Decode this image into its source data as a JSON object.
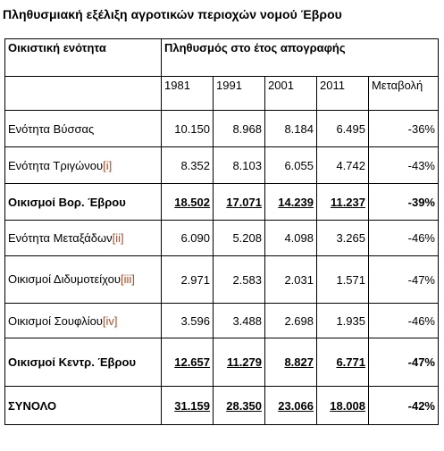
{
  "title": "Πληθυσμιακή εξέλιξη αγροτικών περιοχών νομού Έβρου",
  "header": {
    "col1": "Οικιστική ενότητα",
    "group": "Πληθυσμός στο έτος απογραφής",
    "years": [
      "1981",
      "1991",
      "2001",
      "2011"
    ],
    "change": "Μεταβολή"
  },
  "rows": [
    {
      "name": "Ενότητα Βύσσας",
      "ref": "",
      "values": [
        "10.150",
        "8.968",
        "8.184",
        "6.495"
      ],
      "change": "-36%"
    },
    {
      "name": "Ενότητα Τριγώνου",
      "ref": "[i]",
      "values": [
        "8.352",
        "8.103",
        "6.055",
        "4.742"
      ],
      "change": "-43%"
    },
    {
      "name": "Οικισμοί Βορ. Έβρου",
      "ref": "",
      "values": [
        "18.502",
        "17.071",
        "14.239",
        "11.237"
      ],
      "change": "-39%"
    },
    {
      "name": "Ενότητα Μεταξάδων",
      "ref": "[ii]",
      "values": [
        "6.090",
        "5.208",
        "4.098",
        "3.265"
      ],
      "change": "-46%"
    },
    {
      "name": "Οικισμοί Διδυμοτείχου",
      "ref": "[iii]",
      "values": [
        "2.971",
        "2.583",
        "2.031",
        "1.571"
      ],
      "change": "-47%"
    },
    {
      "name": "Οικισμοί Σουφλίου",
      "ref": "[iv]",
      "values": [
        "3.596",
        "3.488",
        "2.698",
        "1.935"
      ],
      "change": "-46%"
    },
    {
      "name": "Οικισμοί Κεντρ. Έβρου",
      "ref": "",
      "values": [
        "12.657",
        "11.279",
        "8.827",
        "6.771"
      ],
      "change": "-47%"
    },
    {
      "name": "ΣΥΝΟΛΟ",
      "ref": "",
      "values": [
        "31.159",
        "28.350",
        "23.066",
        "18.008"
      ],
      "change": "-42%"
    }
  ]
}
